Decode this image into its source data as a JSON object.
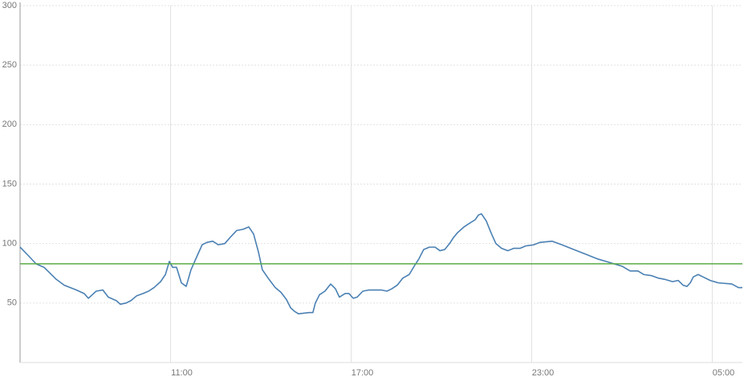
{
  "chart_data": {
    "type": "line",
    "x": [
      6.0,
      6.27,
      6.53,
      6.8,
      7.2,
      7.47,
      7.87,
      8.13,
      8.27,
      8.4,
      8.53,
      8.75,
      8.93,
      9.2,
      9.33,
      9.52,
      9.68,
      9.87,
      10.08,
      10.27,
      10.45,
      10.67,
      10.83,
      10.96,
      11.07,
      11.2,
      11.36,
      11.52,
      11.68,
      11.89,
      12.05,
      12.21,
      12.4,
      12.59,
      12.8,
      13.01,
      13.2,
      13.41,
      13.6,
      13.76,
      13.92,
      14.05,
      14.27,
      14.48,
      14.67,
      14.85,
      14.99,
      15.12,
      15.25,
      15.6,
      15.73,
      15.81,
      15.95,
      16.13,
      16.32,
      16.48,
      16.61,
      16.8,
      16.93,
      17.07,
      17.2,
      17.39,
      17.6,
      18.0,
      18.19,
      18.35,
      18.53,
      18.72,
      18.93,
      19.12,
      19.25,
      19.41,
      19.6,
      19.79,
      19.95,
      20.11,
      20.27,
      20.4,
      20.53,
      20.75,
      20.93,
      21.12,
      21.23,
      21.33,
      21.49,
      21.65,
      21.81,
      22.0,
      22.21,
      22.4,
      22.61,
      22.8,
      23.07,
      23.28,
      23.68,
      24.0,
      24.4,
      24.8,
      25.2,
      25.6,
      26.0,
      26.27,
      26.53,
      26.72,
      26.99,
      27.2,
      27.41,
      27.68,
      27.87,
      28.03,
      28.16,
      28.27,
      28.37,
      28.53,
      28.69,
      28.93,
      29.2,
      29.65,
      29.87,
      30.0
    ],
    "series": [
      {
        "color": "#4a80b3",
        "values": [
          97,
          90,
          83,
          80,
          70,
          65,
          61,
          58,
          54,
          57,
          60,
          61,
          55,
          52,
          49,
          50,
          52,
          56,
          58,
          60,
          63,
          68,
          74,
          85,
          80,
          80,
          67,
          64,
          78,
          90,
          99,
          101,
          102,
          99,
          100,
          106,
          111,
          112,
          114,
          108,
          93,
          78,
          70,
          63,
          59,
          53,
          46,
          43,
          41,
          42,
          42,
          50,
          57,
          60,
          66,
          62,
          55,
          58,
          58,
          54,
          55,
          60,
          61,
          61,
          60,
          62,
          65,
          71,
          74,
          82,
          87,
          95,
          97,
          97,
          94,
          95,
          100,
          105,
          109,
          114,
          117,
          120,
          124,
          125,
          119,
          109,
          100,
          96,
          94,
          96,
          96,
          98,
          99,
          101,
          102,
          99,
          95,
          91,
          87,
          84,
          81,
          77,
          77,
          74,
          73,
          71,
          70,
          68,
          69,
          65,
          64,
          67,
          72,
          74,
          72,
          69,
          67,
          66,
          63,
          63
        ]
      }
    ],
    "threshold": 83,
    "threshold_color": "#5aab46",
    "xlim": [
      6,
      30
    ],
    "xticks": [
      {
        "value": 11,
        "label": "11:00"
      },
      {
        "value": 17,
        "label": "17:00"
      },
      {
        "value": 23,
        "label": "23:00"
      },
      {
        "value": 29,
        "label": "05:00"
      }
    ],
    "ylim": [
      0,
      300
    ],
    "yticks": [
      50,
      100,
      150,
      200,
      250,
      300
    ],
    "grid": true
  }
}
